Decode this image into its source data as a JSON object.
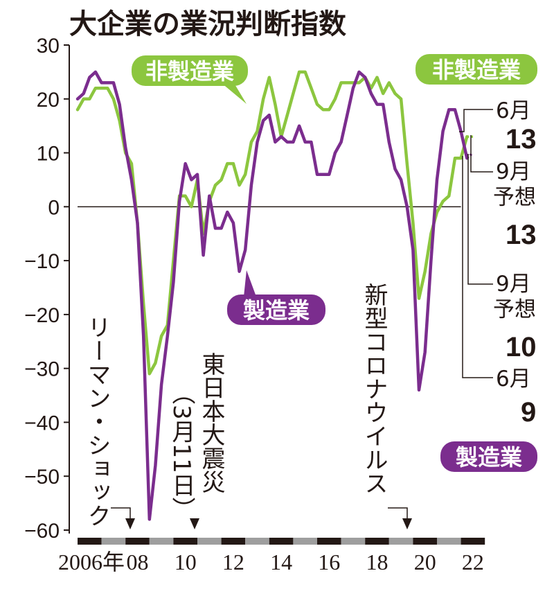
{
  "colors": {
    "manufacturing": "#7b2d8e",
    "non_manufacturing": "#8cc63f",
    "axis": "#231815",
    "bar_dark": "#231815",
    "bar_light": "#9e9e9e"
  },
  "chart_data": {
    "type": "line",
    "title": "大企業の業況判断指数",
    "ylim": [
      -60,
      30
    ],
    "yticks": [
      "30",
      "20",
      "10",
      "0",
      "−10",
      "−20",
      "−30",
      "−40",
      "−50",
      "−60"
    ],
    "xticks": [
      "2006年",
      "08",
      "10",
      "12",
      "14",
      "16",
      "18",
      "20",
      "22"
    ],
    "series": [
      {
        "name": "製造業",
        "color": "#7b2d8e",
        "points": [
          [
            2006.0,
            20
          ],
          [
            2006.25,
            21
          ],
          [
            2006.5,
            24
          ],
          [
            2006.75,
            25
          ],
          [
            2007.0,
            23
          ],
          [
            2007.25,
            23
          ],
          [
            2007.5,
            23
          ],
          [
            2007.75,
            19
          ],
          [
            2008.0,
            11
          ],
          [
            2008.25,
            5
          ],
          [
            2008.5,
            -3
          ],
          [
            2008.75,
            -24
          ],
          [
            2009.0,
            -58
          ],
          [
            2009.25,
            -48
          ],
          [
            2009.5,
            -33
          ],
          [
            2009.75,
            -24
          ],
          [
            2010.0,
            -14
          ],
          [
            2010.25,
            1
          ],
          [
            2010.5,
            8
          ],
          [
            2010.75,
            5
          ],
          [
            2011.0,
            6
          ],
          [
            2011.25,
            -9
          ],
          [
            2011.5,
            2
          ],
          [
            2011.75,
            -4
          ],
          [
            2012.0,
            -4
          ],
          [
            2012.25,
            -1
          ],
          [
            2012.5,
            -3
          ],
          [
            2012.75,
            -12
          ],
          [
            2013.0,
            -8
          ],
          [
            2013.25,
            4
          ],
          [
            2013.5,
            12
          ],
          [
            2013.75,
            16
          ],
          [
            2014.0,
            17
          ],
          [
            2014.25,
            12
          ],
          [
            2014.5,
            13
          ],
          [
            2014.75,
            12
          ],
          [
            2015.0,
            12
          ],
          [
            2015.25,
            15
          ],
          [
            2015.5,
            12
          ],
          [
            2015.75,
            12
          ],
          [
            2016.0,
            6
          ],
          [
            2016.25,
            6
          ],
          [
            2016.5,
            6
          ],
          [
            2016.75,
            10
          ],
          [
            2017.0,
            12
          ],
          [
            2017.25,
            17
          ],
          [
            2017.5,
            22
          ],
          [
            2017.75,
            25
          ],
          [
            2018.0,
            24
          ],
          [
            2018.25,
            21
          ],
          [
            2018.5,
            19
          ],
          [
            2018.75,
            19
          ],
          [
            2019.0,
            12
          ],
          [
            2019.25,
            7
          ],
          [
            2019.5,
            5
          ],
          [
            2019.75,
            0
          ],
          [
            2020.0,
            -8
          ],
          [
            2020.25,
            -34
          ],
          [
            2020.5,
            -27
          ],
          [
            2020.75,
            -10
          ],
          [
            2021.0,
            5
          ],
          [
            2021.25,
            14
          ],
          [
            2021.5,
            18
          ],
          [
            2021.75,
            18
          ],
          [
            2022.0,
            14
          ],
          [
            2022.25,
            9
          ]
        ],
        "forecast": [
          [
            2022.25,
            9
          ],
          [
            2022.5,
            10
          ]
        ]
      },
      {
        "name": "非製造業",
        "color": "#8cc63f",
        "points": [
          [
            2006.0,
            18
          ],
          [
            2006.25,
            20
          ],
          [
            2006.5,
            20
          ],
          [
            2006.75,
            22
          ],
          [
            2007.0,
            22
          ],
          [
            2007.25,
            22
          ],
          [
            2007.5,
            20
          ],
          [
            2007.75,
            16
          ],
          [
            2008.0,
            10
          ],
          [
            2008.25,
            8
          ],
          [
            2008.5,
            -3
          ],
          [
            2008.75,
            -18
          ],
          [
            2009.0,
            -31
          ],
          [
            2009.25,
            -29
          ],
          [
            2009.5,
            -24
          ],
          [
            2009.75,
            -22
          ],
          [
            2010.0,
            -10
          ],
          [
            2010.25,
            2
          ],
          [
            2010.5,
            2
          ],
          [
            2010.75,
            0
          ],
          [
            2011.0,
            5
          ],
          [
            2011.25,
            -5
          ],
          [
            2011.5,
            1
          ],
          [
            2011.75,
            4
          ],
          [
            2012.0,
            5
          ],
          [
            2012.25,
            8
          ],
          [
            2012.5,
            8
          ],
          [
            2012.75,
            4
          ],
          [
            2013.0,
            6
          ],
          [
            2013.25,
            12
          ],
          [
            2013.5,
            14
          ],
          [
            2013.75,
            20
          ],
          [
            2014.0,
            24
          ],
          [
            2014.25,
            19
          ],
          [
            2014.5,
            13
          ],
          [
            2014.75,
            17
          ],
          [
            2015.0,
            21
          ],
          [
            2015.25,
            25
          ],
          [
            2015.5,
            25
          ],
          [
            2015.75,
            22
          ],
          [
            2016.0,
            19
          ],
          [
            2016.25,
            18
          ],
          [
            2016.5,
            18
          ],
          [
            2016.75,
            20
          ],
          [
            2017.0,
            23
          ],
          [
            2017.25,
            23
          ],
          [
            2017.5,
            23
          ],
          [
            2017.75,
            23
          ],
          [
            2018.0,
            24
          ],
          [
            2018.25,
            22
          ],
          [
            2018.5,
            24
          ],
          [
            2018.75,
            21
          ],
          [
            2019.0,
            23
          ],
          [
            2019.25,
            21
          ],
          [
            2019.5,
            20
          ],
          [
            2019.75,
            8
          ],
          [
            2020.0,
            -3
          ],
          [
            2020.25,
            -17
          ],
          [
            2020.5,
            -12
          ],
          [
            2020.75,
            -5
          ],
          [
            2021.0,
            -1
          ],
          [
            2021.25,
            1
          ],
          [
            2021.5,
            2
          ],
          [
            2021.75,
            9
          ],
          [
            2022.0,
            9
          ],
          [
            2022.25,
            13
          ]
        ],
        "forecast": [
          [
            2022.25,
            13
          ],
          [
            2022.5,
            13
          ]
        ]
      }
    ],
    "series_labels": [
      "非製造業",
      "製造業"
    ],
    "events": [
      {
        "name": "lehman",
        "label": "リーマン・ショック",
        "x": 2008.75
      },
      {
        "name": "earthquake",
        "label": "東日本大震災",
        "sub": "（3月11日）",
        "x": 2011.2
      },
      {
        "name": "covid",
        "label": "新型コロナウイルス",
        "x": 2020.0
      }
    ],
    "annotations": {
      "non_mfg_june_label": "6月",
      "non_mfg_june_value": "13",
      "non_mfg_sep_label": "9月",
      "non_mfg_sep_sub": "予想",
      "non_mfg_sep_value": "13",
      "mfg_sep_label": "9月",
      "mfg_sep_sub": "予想",
      "mfg_sep_value": "10",
      "mfg_june_label": "6月",
      "mfg_june_value": "9"
    },
    "zero_line": true
  }
}
